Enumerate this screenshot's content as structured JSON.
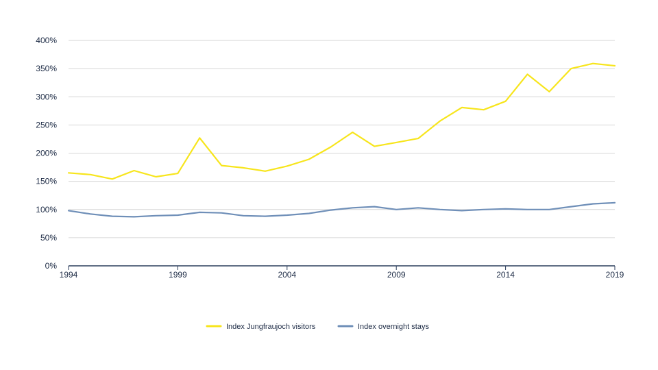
{
  "colors": {
    "background": "#ffffff",
    "grid": "#d6d6d6",
    "axis": "#2c3e5c",
    "text": "#1d2b45",
    "series_jungfraujoch": "#f7e51c",
    "series_overnight": "#6f8fb8"
  },
  "chart_data": {
    "type": "line",
    "title": "",
    "xlabel": "",
    "ylabel": "",
    "x": [
      1994,
      1995,
      1996,
      1997,
      1998,
      1999,
      2000,
      2001,
      2002,
      2003,
      2004,
      2005,
      2006,
      2007,
      2008,
      2009,
      2010,
      2011,
      2012,
      2013,
      2014,
      2015,
      2016,
      2017,
      2018,
      2019
    ],
    "x_ticks": [
      1994,
      1999,
      2004,
      2009,
      2014,
      2019
    ],
    "x_tick_labels": [
      "1994",
      "1999",
      "2004",
      "2009",
      "2014",
      "2019"
    ],
    "xlim": [
      1994,
      2019
    ],
    "ylim": [
      0,
      400
    ],
    "y_ticks": [
      0,
      50,
      100,
      150,
      200,
      250,
      300,
      350,
      400
    ],
    "y_tick_labels": [
      "0%",
      "50%",
      "100%",
      "150%",
      "200%",
      "250%",
      "300%",
      "350%",
      "400%"
    ],
    "grid": true,
    "legend_position": "bottom-center",
    "series": [
      {
        "name": "Index Jungfraujoch visitors",
        "color": "#f7e51c",
        "values": [
          165,
          162,
          154,
          169,
          158,
          164,
          227,
          178,
          174,
          168,
          177,
          189,
          211,
          237,
          212,
          219,
          226,
          257,
          281,
          277,
          292,
          340,
          309,
          350,
          359,
          355
        ]
      },
      {
        "name": "Index overnight stays",
        "color": "#6f8fb8",
        "values": [
          98,
          92,
          88,
          87,
          89,
          90,
          95,
          94,
          89,
          88,
          90,
          93,
          99,
          103,
          105,
          100,
          103,
          100,
          98,
          100,
          101,
          100,
          100,
          105,
          110,
          112
        ]
      }
    ]
  }
}
